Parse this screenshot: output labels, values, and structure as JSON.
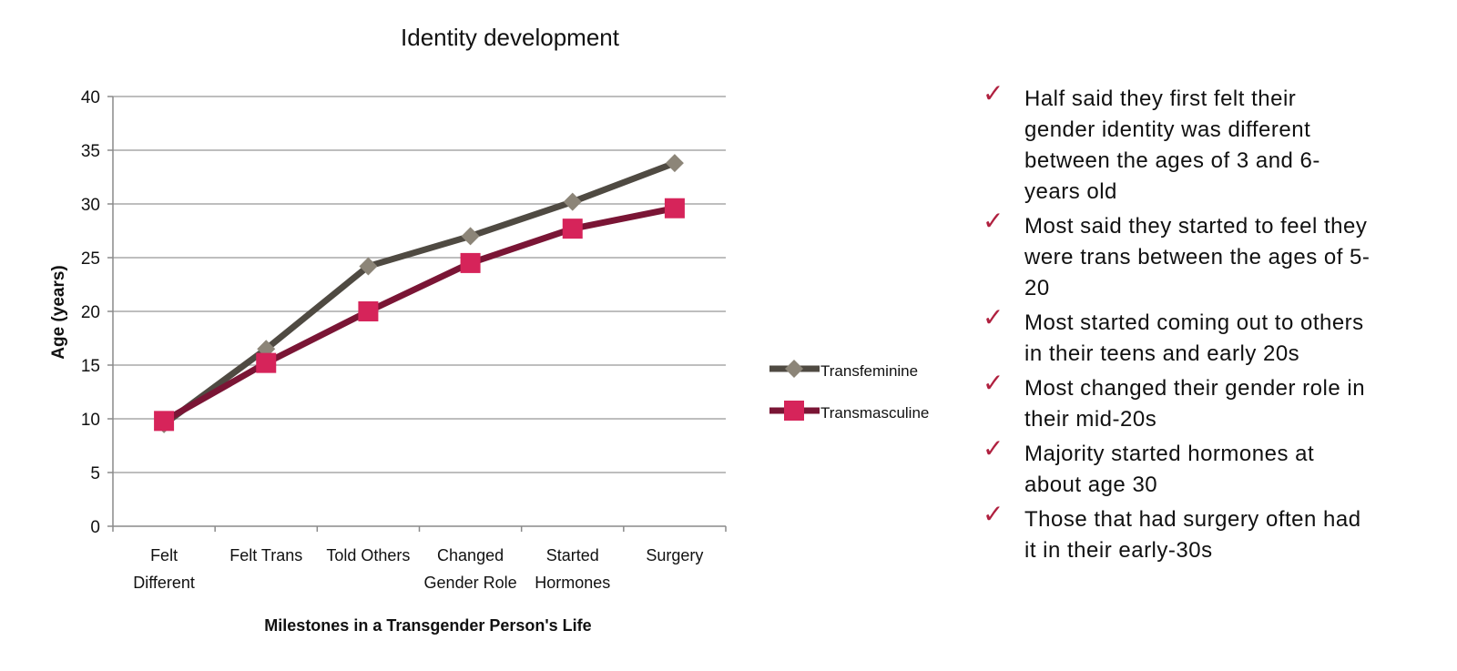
{
  "chart_data": {
    "type": "line",
    "title": "Identity development",
    "xlabel": "Milestones in a Transgender Person's Life",
    "ylabel": "Age (years)",
    "ylim": [
      0,
      40
    ],
    "yticks": [
      0,
      5,
      10,
      15,
      20,
      25,
      30,
      35,
      40
    ],
    "grid": true,
    "legend_position": "right",
    "categories": [
      [
        "Felt",
        "Different"
      ],
      [
        "Felt Trans"
      ],
      [
        "Told Others"
      ],
      [
        "Changed",
        "Gender Role"
      ],
      [
        "Started",
        "Hormones"
      ],
      [
        "Surgery"
      ]
    ],
    "series": [
      {
        "name": "Transfeminine",
        "marker": "diamond",
        "line_color": "#4f4a42",
        "marker_color": "#8c8578",
        "values": [
          9.5,
          16.5,
          24.2,
          27,
          30.2,
          33.8
        ]
      },
      {
        "name": "Transmasculine",
        "marker": "square",
        "line_color": "#7a1535",
        "marker_color": "#d6245a",
        "values": [
          9.8,
          15.2,
          20,
          24.5,
          27.7,
          29.6
        ]
      }
    ]
  },
  "bullets": [
    "Half said they first felt their gender identity was different between the ages of 3 and 6-years old",
    "Most said they started to feel they were trans between the ages of 5-20",
    "Most started coming out to others in their teens and early 20s",
    "Most changed their gender role in their mid-20s",
    "Majority started hormones at about age 30",
    "Those that had surgery often had it in their early-30s"
  ],
  "bullet_icon": "checkmark-icon",
  "bullet_color": "#b0203f"
}
